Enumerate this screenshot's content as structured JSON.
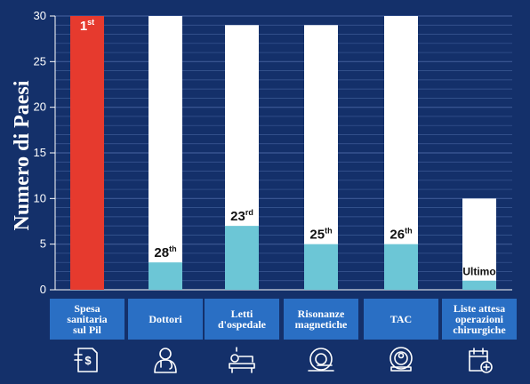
{
  "chart_data": {
    "type": "bar",
    "ylabel": "Numero di Paesi",
    "ylim": [
      0,
      30
    ],
    "yticks": [
      0,
      5,
      10,
      15,
      20,
      25,
      30
    ],
    "grid": true,
    "categories": [
      [
        "Spesa",
        "sanitaria",
        "sul Pil"
      ],
      [
        "Dottori"
      ],
      [
        "Letti",
        "d'ospedale"
      ],
      [
        "Risonanze",
        "magnetiche"
      ],
      [
        "TAC"
      ],
      [
        "Liste attesa",
        "operazioni",
        "chirurgiche"
      ]
    ],
    "icons": [
      "money-document-icon",
      "doctor-icon",
      "hospital-bed-icon",
      "mri-scanner-icon",
      "ct-scanner-icon",
      "calendar-plus-icon"
    ],
    "series": [
      {
        "name": "total",
        "values": [
          30,
          30,
          29,
          29,
          30,
          10
        ]
      },
      {
        "name": "rank",
        "values": [
          30,
          3,
          7,
          5,
          5,
          1
        ]
      }
    ],
    "rank_labels": [
      {
        "main": "1",
        "sup": "st"
      },
      {
        "main": "28",
        "sup": "th"
      },
      {
        "main": "23",
        "sup": "rd"
      },
      {
        "main": "25",
        "sup": "th"
      },
      {
        "main": "26",
        "sup": "th"
      },
      {
        "main": "Ultimo",
        "sup": ""
      }
    ],
    "colors": {
      "background": "#14306a",
      "grid": "#3d5a96",
      "total_bar": "#ffffff",
      "rank_bar": "#6cc6d6",
      "first_bar": "#e63a2e",
      "label_band": "#2a6fc4"
    }
  }
}
